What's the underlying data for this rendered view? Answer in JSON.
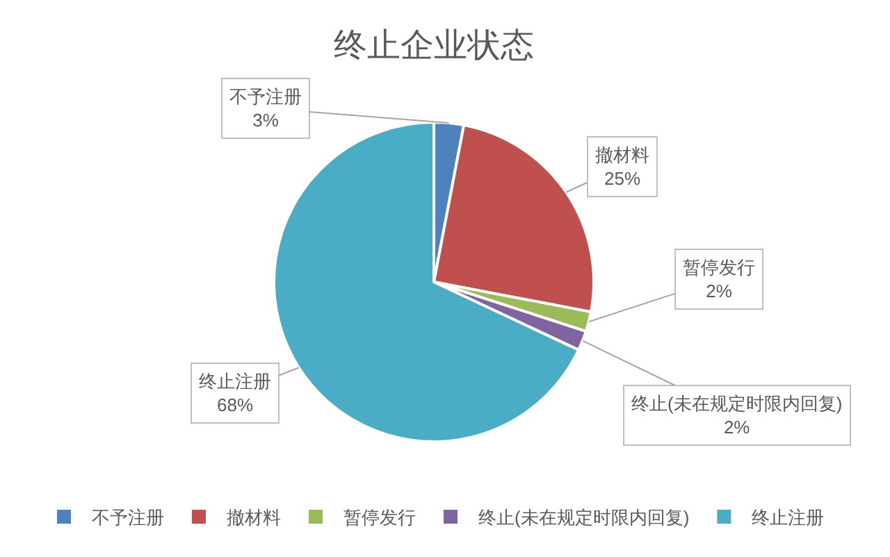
{
  "chart_data": {
    "type": "pie",
    "title": "终止企业状态",
    "categories": [
      "不予注册",
      "撤材料",
      "暂停发行",
      "终止(未在规定时限内回复)",
      "终止注册"
    ],
    "values": [
      3,
      25,
      2,
      2,
      68
    ],
    "value_labels": [
      "3%",
      "25%",
      "2%",
      "2%",
      "68%"
    ],
    "colors": [
      "#4f81bd",
      "#c0504d",
      "#9bbb59",
      "#8064a2",
      "#4bacc6"
    ],
    "legend": "bottom"
  }
}
